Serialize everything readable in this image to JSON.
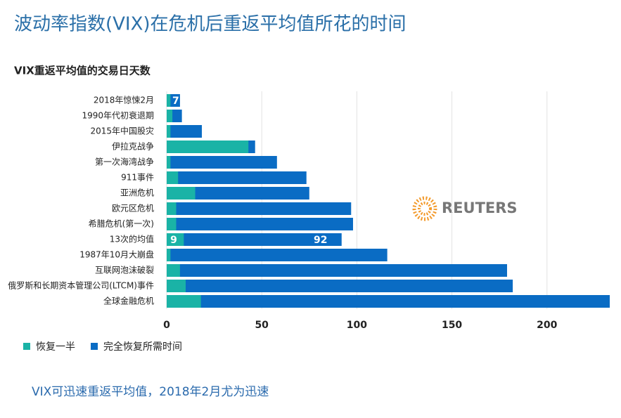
{
  "chart_data": {
    "type": "bar",
    "orientation": "horizontal",
    "overlap": true,
    "title": "波动率指数(VIX)在危机后重返平均值所花的时间",
    "subtitle": "VIX重返平均值的交易日天数",
    "footnote": "VIX可迅速重返平均值，2018年2月尤为迅速",
    "logo": "REUTERS",
    "categories": [
      "2018年惊悚2月",
      "1990年代初衰退期",
      "2015年中国股灾",
      "伊拉克战争",
      "第一次海湾战争",
      "911事件",
      "亚洲危机",
      "欧元区危机",
      "希腊危机(第一次)",
      "13次的均值",
      "1987年10月大崩盘",
      "互联网泡沫破裂",
      "俄罗斯和长期资本管理公司(LTCM)事件",
      "全球金融危机"
    ],
    "series": [
      {
        "name": "完全恢复所需时间",
        "color": "#0a6cc4",
        "values": [
          7,
          8,
          18.5,
          46.5,
          58,
          73.5,
          75,
          97,
          98,
          92,
          116,
          179,
          182,
          233
        ],
        "value_labels": [
          "7",
          null,
          null,
          null,
          null,
          null,
          null,
          null,
          null,
          "92",
          null,
          null,
          null,
          null
        ]
      },
      {
        "name": "恢复一半",
        "color": "#1ab3a6",
        "values": [
          2,
          3,
          2,
          43,
          2,
          6,
          15,
          5,
          5,
          9,
          2,
          7,
          10,
          18
        ],
        "value_labels": [
          null,
          null,
          null,
          null,
          null,
          null,
          null,
          null,
          null,
          "9",
          null,
          null,
          null,
          null
        ]
      }
    ],
    "legend_order": [
      1,
      0
    ],
    "xlim": [
      0,
      233
    ],
    "xticks": [
      0,
      50,
      100,
      150,
      200
    ],
    "grid": true
  }
}
